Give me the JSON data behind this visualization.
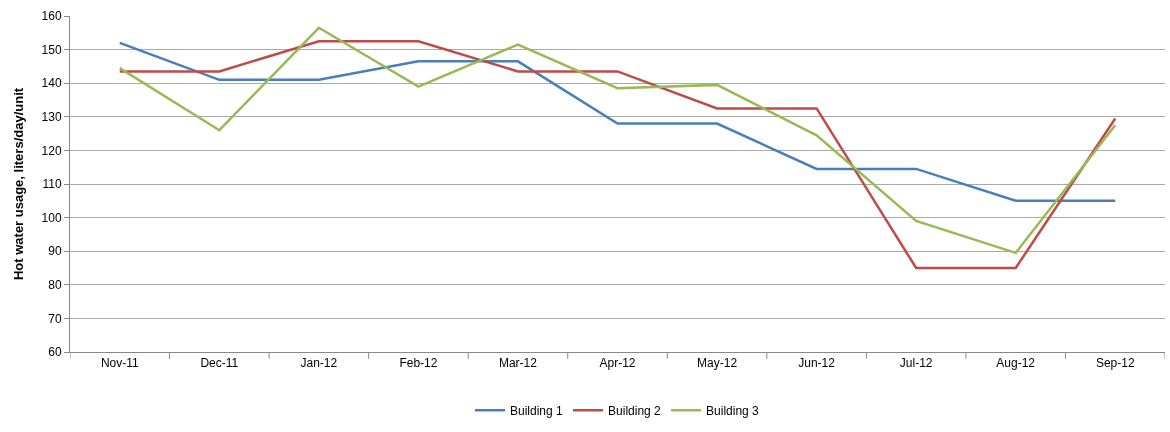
{
  "chart_data": {
    "type": "line",
    "ylabel": "Hot water usage, liters/day/unit",
    "categories": [
      "Nov-11",
      "Dec-11",
      "Jan-12",
      "Feb-12",
      "Mar-12",
      "Apr-12",
      "May-12",
      "Jun-12",
      "Jul-12",
      "Aug-12",
      "Sep-12"
    ],
    "series": [
      {
        "name": "Building 1",
        "color": "#4a7ebb",
        "values": [
          152,
          141,
          141,
          146.5,
          146.5,
          128,
          128,
          114.5,
          114.5,
          105,
          105
        ]
      },
      {
        "name": "Building 2",
        "color": "#be4b48",
        "values": [
          143.5,
          143.5,
          152.5,
          152.5,
          143.5,
          143.5,
          132.5,
          132.5,
          85,
          85,
          129.5
        ]
      },
      {
        "name": "Building 3",
        "color": "#98b954",
        "values": [
          144.5,
          126,
          156.5,
          139,
          151.5,
          138.5,
          139.5,
          124.5,
          99,
          89.5,
          127.5
        ]
      }
    ],
    "ylim": [
      60,
      160
    ],
    "yticks": [
      60,
      70,
      80,
      90,
      100,
      110,
      120,
      130,
      140,
      150,
      160
    ],
    "grid": "y",
    "legend": "bottom",
    "marker": "none",
    "line_style": "solid"
  }
}
